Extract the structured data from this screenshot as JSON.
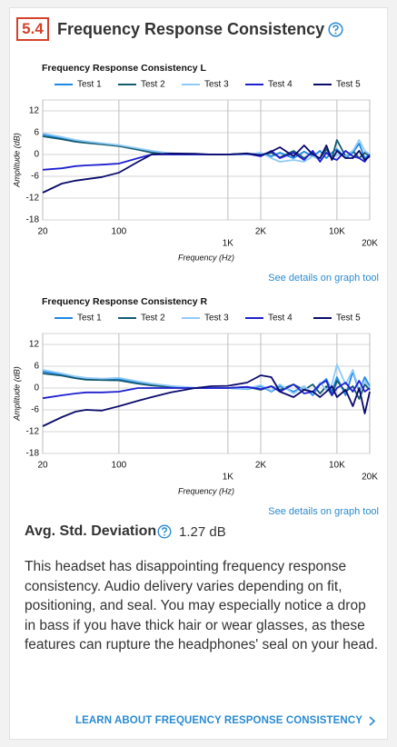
{
  "header": {
    "score": "5.4",
    "title": "Frequency Response Consistency"
  },
  "chart_data": [
    {
      "type": "line",
      "title": "Frequency Response Consistency L",
      "xlabel": "Frequency (Hz)",
      "ylabel": "Amplitude (dB)",
      "log_x": true,
      "grid": true,
      "legend": "top",
      "x": [
        20,
        30,
        40,
        50,
        70,
        100,
        150,
        200,
        300,
        500,
        700,
        1000,
        1500,
        2000,
        2500,
        3000,
        4000,
        5000,
        6000,
        7000,
        8000,
        9000,
        10000,
        12000,
        14000,
        16000,
        18000,
        20000
      ],
      "xlim": [
        20,
        20000
      ],
      "xticks": [
        20,
        100,
        {
          "value": 1000,
          "label": "1K"
        },
        {
          "value": 2000,
          "label": "2K"
        },
        {
          "value": 10000,
          "label": "10K"
        },
        {
          "value": 20000,
          "label": "20K"
        }
      ],
      "ylim": [
        -18,
        15
      ],
      "yticks": [
        12,
        6,
        0,
        -6,
        -12,
        -18
      ],
      "series": [
        {
          "name": "Test 1",
          "color": "#1e88e5",
          "values": [
            5.5,
            4.5,
            3.8,
            3.5,
            3,
            2.5,
            1.5,
            0.8,
            0.2,
            0,
            0,
            0,
            0,
            0.3,
            -0.5,
            0.5,
            -1,
            0.8,
            -0.5,
            1,
            -1,
            0.5,
            1.5,
            -1,
            0.5,
            3,
            -1,
            0
          ]
        },
        {
          "name": "Test 2",
          "color": "#145a6e",
          "values": [
            5,
            4.2,
            3.5,
            3.2,
            2.8,
            2.3,
            1.3,
            0.5,
            0,
            0,
            0,
            0,
            0.2,
            -0.3,
            0.5,
            -0.8,
            1,
            -1,
            0.5,
            -1.5,
            1.5,
            -1,
            4,
            -0.5,
            1,
            -1,
            0.5,
            -0.5
          ]
        },
        {
          "name": "Test 3",
          "color": "#90caf9",
          "values": [
            5.8,
            4.8,
            4,
            3.6,
            3.1,
            2.6,
            1.7,
            1,
            0.3,
            0,
            0,
            0,
            0,
            0.5,
            -1,
            -2,
            -1.5,
            -2,
            -0.5,
            -1.5,
            0.5,
            -1,
            0,
            -0.5,
            1,
            4,
            1,
            0
          ]
        },
        {
          "name": "Test 4",
          "color": "#1f1fd1",
          "values": [
            -4.2,
            -3.8,
            -3.2,
            -3,
            -2.8,
            -2.5,
            -1,
            0,
            0,
            0,
            0,
            0,
            0.2,
            -0.5,
            1,
            -1,
            0.5,
            -1.5,
            1,
            -2,
            0.5,
            -1,
            -1.5,
            1,
            -0.5,
            -1,
            -2,
            0
          ]
        },
        {
          "name": "Test 5",
          "color": "#0b0b6b",
          "values": [
            -10.5,
            -8,
            -7.2,
            -6.8,
            -6.2,
            -5,
            -2,
            0,
            0.3,
            0.2,
            0,
            0,
            0.3,
            -0.2,
            0.8,
            2,
            -0.5,
            2.5,
            0,
            -1,
            2.5,
            -1.5,
            1,
            -1,
            -1,
            1,
            -1.5,
            -0.5
          ]
        }
      ]
    },
    {
      "type": "line",
      "title": "Frequency Response Consistency R",
      "xlabel": "Frequency (Hz)",
      "ylabel": "Amplitude (dB)",
      "log_x": true,
      "grid": true,
      "legend": "top",
      "x": [
        20,
        30,
        40,
        50,
        70,
        100,
        150,
        200,
        300,
        500,
        700,
        1000,
        1500,
        2000,
        2500,
        3000,
        4000,
        5000,
        6000,
        7000,
        8000,
        9000,
        10000,
        12000,
        14000,
        16000,
        18000,
        20000
      ],
      "xlim": [
        20,
        20000
      ],
      "xticks": [
        20,
        100,
        {
          "value": 1000,
          "label": "1K"
        },
        {
          "value": 2000,
          "label": "2K"
        },
        {
          "value": 10000,
          "label": "10K"
        },
        {
          "value": 20000,
          "label": "20K"
        }
      ],
      "ylim": [
        -18,
        15
      ],
      "yticks": [
        12,
        6,
        0,
        -6,
        -12,
        -18
      ],
      "series": [
        {
          "name": "Test 1",
          "color": "#1e88e5",
          "values": [
            4.5,
            3.8,
            3,
            2.5,
            2.4,
            2.5,
            1.5,
            1,
            0.5,
            0,
            0,
            0,
            -0.3,
            0.5,
            -1,
            0.5,
            -1,
            0.5,
            -2,
            1,
            2.5,
            -1,
            3,
            -2,
            4.5,
            -1,
            3,
            0.5
          ]
        },
        {
          "name": "Test 2",
          "color": "#145a6e",
          "values": [
            4,
            3.4,
            2.7,
            2.3,
            2.2,
            2.1,
            1.2,
            0.7,
            0.3,
            0,
            0,
            0,
            0.3,
            -0.5,
            0.5,
            -0.5,
            1,
            -0.5,
            1,
            -1.5,
            0.5,
            -2,
            2,
            -1,
            0.5,
            -3,
            1,
            -0.5
          ]
        },
        {
          "name": "Test 3",
          "color": "#90caf9",
          "values": [
            5,
            4,
            3.2,
            2.8,
            2.6,
            2.8,
            1.8,
            1.2,
            0.6,
            0.1,
            0,
            0,
            -0.2,
            0.8,
            -0.8,
            1,
            -1.5,
            0.5,
            -1.5,
            1.5,
            -0.5,
            1,
            6.5,
            1,
            5,
            -0.5,
            2,
            0
          ]
        },
        {
          "name": "Test 4",
          "color": "#1f1fd1",
          "values": [
            -2.8,
            -2,
            -1.5,
            -1.2,
            -1.2,
            -1,
            0,
            0,
            0,
            0,
            0,
            0,
            0.3,
            -0.3,
            0.5,
            -1,
            1,
            -1.5,
            -1,
            1,
            2,
            -2,
            0,
            1.5,
            -1,
            2,
            -1,
            0
          ]
        },
        {
          "name": "Test 5",
          "color": "#0b0b6b",
          "values": [
            -10.5,
            -8,
            -6.5,
            -6,
            -6.2,
            -5,
            -3.5,
            -2.5,
            -1.2,
            0,
            0.5,
            0.6,
            1.5,
            3.5,
            3,
            -1,
            -2.5,
            -0.5,
            -1,
            -2.5,
            -1,
            0.5,
            -2.5,
            -0.5,
            -5,
            0,
            -7,
            -1
          ]
        }
      ]
    }
  ],
  "details_links": [
    "See details on graph tool",
    "See details on graph tool"
  ],
  "stat": {
    "label": "Avg. Std. Deviation",
    "value": "1.27 dB"
  },
  "summary": "This headset has disappointing frequency response consistency. Audio delivery varies depending on fit, positioning, and seal. You may especially notice a drop in bass if you have thick hair or wear glasses, as these features can rupture the headphones' seal on your head.",
  "learn_link": "LEARN ABOUT FREQUENCY RESPONSE CONSISTENCY"
}
